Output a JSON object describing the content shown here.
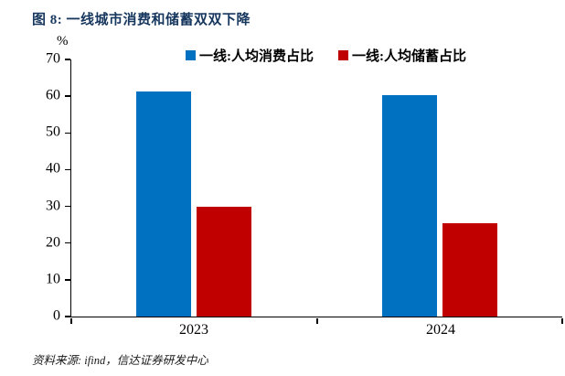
{
  "figure": {
    "title": "图 8: 一线城市消费和储蓄双双下降",
    "source": "资料来源: ifind，信达证券研发中心",
    "percent_label": "%"
  },
  "chart_data": {
    "type": "bar",
    "categories": [
      "2023",
      "2024"
    ],
    "series": [
      {
        "name": "一线:人均消费占比",
        "color": "#0070C0",
        "values": [
          61.4,
          60.4
        ]
      },
      {
        "name": "一线:人均储蓄占比",
        "color": "#C00000",
        "values": [
          29.9,
          25.3
        ]
      }
    ],
    "title": "一线城市消费和储蓄双双下降",
    "xlabel": "",
    "ylabel": "%",
    "ylim": [
      0,
      70
    ],
    "ytick_step": 10,
    "grid": false,
    "legend_position": "top-center"
  },
  "colors": {
    "title_navy": "#17375E",
    "axis_black": "#000000",
    "consumption_blue": "#0070C0",
    "savings_red": "#C00000",
    "background": "#FFFFFF"
  }
}
